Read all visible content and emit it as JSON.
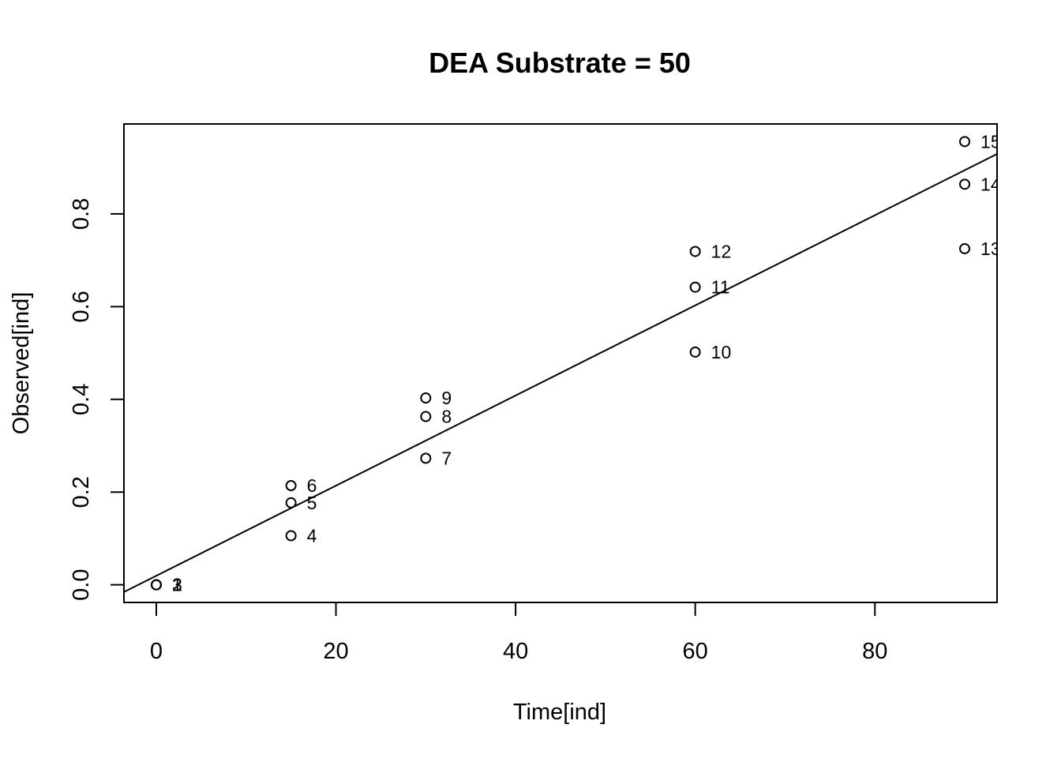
{
  "chart_data": {
    "type": "scatter",
    "title": "DEA Substrate = 50",
    "xlabel": "Time[ind]",
    "ylabel": "Observed[ind]",
    "xlim": [
      -3.6,
      93.6
    ],
    "ylim": [
      -0.038,
      0.994
    ],
    "x_ticks": [
      0,
      20,
      40,
      60,
      80
    ],
    "y_ticks": [
      0.0,
      0.2,
      0.4,
      0.6,
      0.8
    ],
    "x_tick_labels": [
      "0",
      "20",
      "40",
      "60",
      "80"
    ],
    "y_tick_labels": [
      "0.0",
      "0.2",
      "0.4",
      "0.6",
      "0.8"
    ],
    "points": [
      {
        "label": "1",
        "x": 0,
        "y": 0.0
      },
      {
        "label": "2",
        "x": 0,
        "y": 0.0
      },
      {
        "label": "3",
        "x": 0,
        "y": 0.0
      },
      {
        "label": "4",
        "x": 15,
        "y": 0.106
      },
      {
        "label": "5",
        "x": 15,
        "y": 0.177
      },
      {
        "label": "6",
        "x": 15,
        "y": 0.214
      },
      {
        "label": "7",
        "x": 30,
        "y": 0.273
      },
      {
        "label": "8",
        "x": 30,
        "y": 0.363
      },
      {
        "label": "9",
        "x": 30,
        "y": 0.403
      },
      {
        "label": "10",
        "x": 60,
        "y": 0.502
      },
      {
        "label": "11",
        "x": 60,
        "y": 0.642
      },
      {
        "label": "12",
        "x": 60,
        "y": 0.719
      },
      {
        "label": "13",
        "x": 90,
        "y": 0.725
      },
      {
        "label": "14",
        "x": 90,
        "y": 0.864
      },
      {
        "label": "15",
        "x": 90,
        "y": 0.956
      }
    ],
    "fit_line": {
      "intercept": 0.0195,
      "slope": 0.00972
    },
    "grid": false,
    "legend": "none"
  }
}
